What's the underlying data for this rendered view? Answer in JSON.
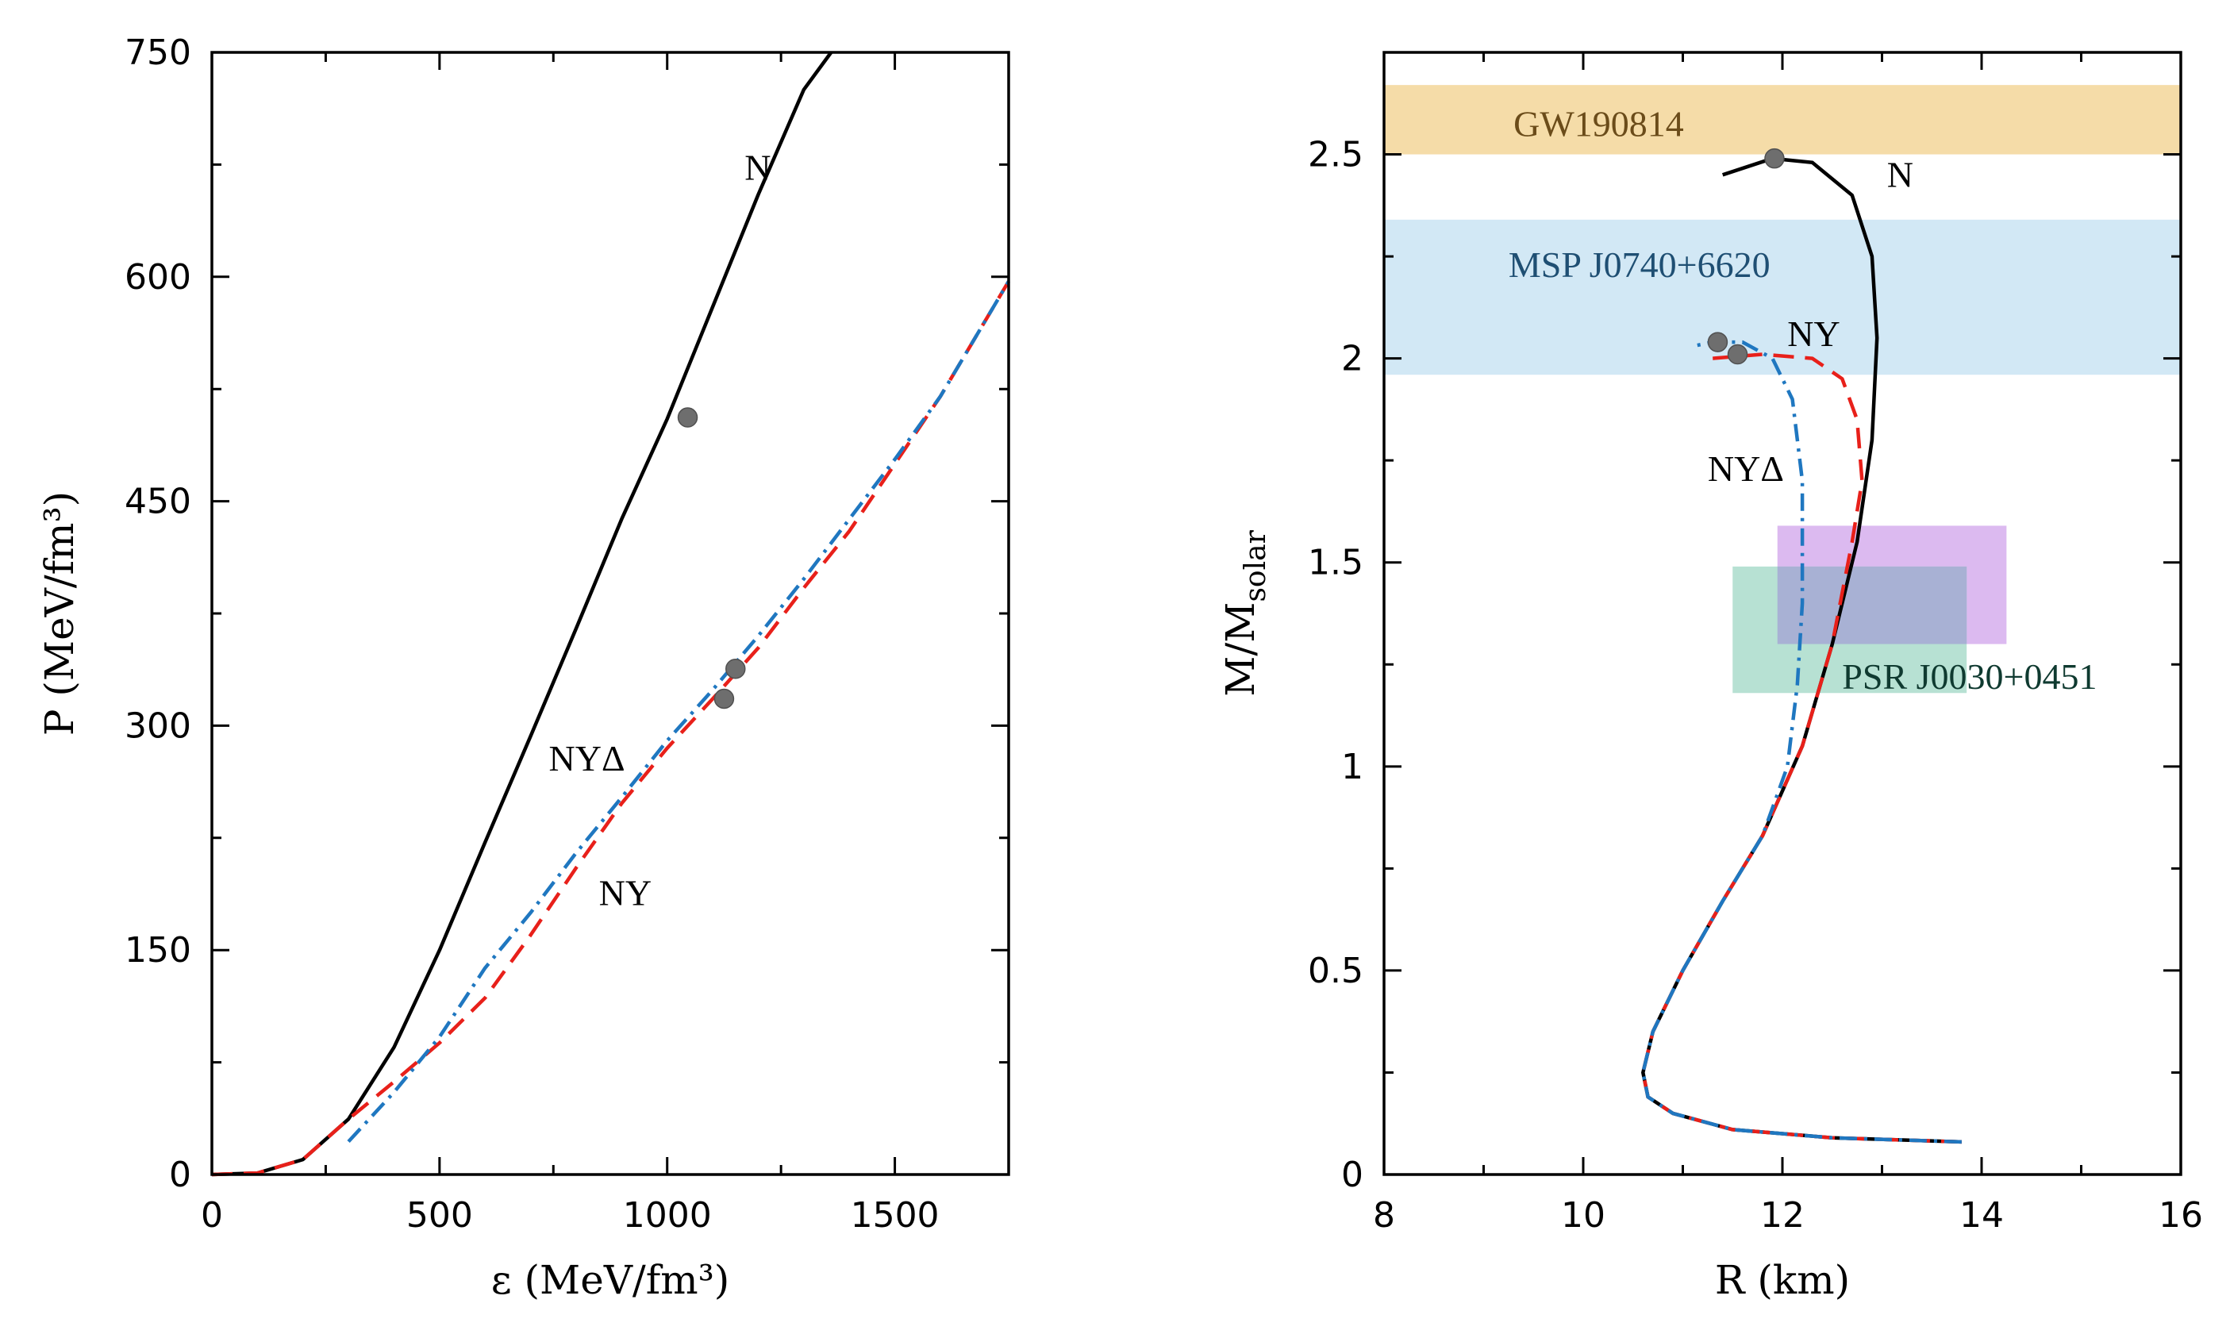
{
  "chart_data": [
    {
      "type": "line",
      "title": "",
      "xlabel": "ε (MeV/fm³)",
      "ylabel": "P (MeV/fm³)",
      "xlim": [
        0,
        1750
      ],
      "ylim": [
        0,
        750
      ],
      "xticks": [
        "0",
        "500",
        "1000",
        "1500"
      ],
      "yticks": [
        "0",
        "150",
        "300",
        "450",
        "600",
        "750"
      ],
      "series": [
        {
          "name": "N",
          "style": "solid",
          "color": "#000000",
          "x": [
            0,
            100,
            200,
            300,
            400,
            500,
            600,
            700,
            800,
            900,
            1000,
            1100,
            1200,
            1300,
            1360
          ],
          "y": [
            0,
            1,
            10,
            37,
            85,
            150,
            222,
            293,
            365,
            438,
            505,
            580,
            655,
            725,
            750
          ]
        },
        {
          "name": "NY",
          "style": "dashed",
          "color": "#e8201a",
          "x": [
            0,
            100,
            200,
            300,
            400,
            500,
            600,
            700,
            800,
            900,
            1000,
            1100,
            1200,
            1300,
            1400,
            1500,
            1600,
            1750
          ],
          "y": [
            0,
            1,
            10,
            37,
            62,
            88,
            118,
            160,
            205,
            248,
            285,
            318,
            352,
            392,
            430,
            475,
            520,
            597
          ]
        },
        {
          "name": "NYΔ",
          "style": "dashdot",
          "color": "#1f77c0",
          "x": [
            300,
            400,
            500,
            600,
            700,
            800,
            900,
            1000,
            1100,
            1200,
            1300,
            1400,
            1500,
            1600,
            1750
          ],
          "y": [
            22,
            55,
            92,
            138,
            175,
            215,
            252,
            290,
            324,
            360,
            398,
            438,
            478,
            520,
            597
          ]
        }
      ],
      "markers": [
        {
          "x": 1045,
          "y": 506
        },
        {
          "x": 1125,
          "y": 318
        },
        {
          "x": 1150,
          "y": 338
        }
      ],
      "annotations": [
        {
          "text": "N",
          "x": 1170,
          "y": 665
        },
        {
          "text": "NYΔ",
          "x": 740,
          "y": 270
        },
        {
          "text": "NY",
          "x": 850,
          "y": 180
        }
      ]
    },
    {
      "type": "line",
      "title": "",
      "xlabel": "R (km)",
      "ylabel_main": "M/M",
      "ylabel_sub": "solar",
      "xlim": [
        8,
        16
      ],
      "ylim": [
        0,
        2.75
      ],
      "xticks": [
        "8",
        "10",
        "12",
        "14",
        "16"
      ],
      "yticks": [
        "0",
        "0.5",
        "1",
        "1.5",
        "2",
        "2.5"
      ],
      "bands": [
        {
          "name": "GW190814",
          "x": [
            8,
            16
          ],
          "y": [
            2.5,
            2.67
          ],
          "color": "#f5dca8",
          "label_color": "#6b4c1a",
          "label_x": 9.3,
          "label_y": 2.545
        },
        {
          "name": "MSP J0740+6620",
          "x": [
            8,
            16
          ],
          "y": [
            1.96,
            2.34
          ],
          "color": "#d2e8f5",
          "label_color": "#1f4f73",
          "label_x": 9.25,
          "label_y": 2.2
        },
        {
          "name": "PSR_violet",
          "x": [
            11.95,
            14.25
          ],
          "y": [
            1.3,
            1.59
          ],
          "color": "#dcbaf0"
        },
        {
          "name": "PSR J0030+0451",
          "x": [
            11.5,
            13.85
          ],
          "y": [
            1.18,
            1.49
          ],
          "color": "#b7e1d3",
          "label_color": "#0f3a30",
          "label_x": 12.6,
          "label_y": 1.19
        }
      ],
      "overlap_band": {
        "x": [
          11.95,
          13.85
        ],
        "y": [
          1.3,
          1.49
        ],
        "color": "#a8b1d4"
      },
      "series": [
        {
          "name": "N",
          "style": "solid",
          "color": "#000000",
          "x": [
            13.8,
            12.5,
            11.5,
            10.9,
            10.65,
            10.6,
            10.7,
            11.0,
            11.4,
            11.8,
            12.2,
            12.5,
            12.75,
            12.9,
            12.95,
            12.9,
            12.7,
            12.3,
            11.9,
            11.4
          ],
          "y": [
            0.08,
            0.09,
            0.11,
            0.15,
            0.19,
            0.25,
            0.35,
            0.5,
            0.67,
            0.83,
            1.05,
            1.3,
            1.55,
            1.8,
            2.05,
            2.25,
            2.4,
            2.48,
            2.49,
            2.45
          ]
        },
        {
          "name": "NY",
          "style": "dashed",
          "color": "#e8201a",
          "x": [
            13.8,
            12.5,
            11.5,
            10.9,
            10.65,
            10.6,
            10.7,
            11.0,
            11.4,
            11.8,
            12.2,
            12.5,
            12.7,
            12.8,
            12.75,
            12.6,
            12.3,
            11.8,
            11.3
          ],
          "y": [
            0.08,
            0.09,
            0.11,
            0.15,
            0.19,
            0.25,
            0.35,
            0.5,
            0.67,
            0.83,
            1.05,
            1.3,
            1.55,
            1.7,
            1.85,
            1.95,
            2.0,
            2.01,
            2.0
          ]
        },
        {
          "name": "NYΔ",
          "style": "dashdot",
          "color": "#1f77c0",
          "x": [
            13.8,
            12.5,
            11.5,
            10.9,
            10.65,
            10.6,
            10.7,
            11.0,
            11.4,
            11.8,
            12.05,
            12.15,
            12.2,
            12.2,
            12.1,
            11.9,
            11.6,
            11.3,
            11.1
          ],
          "y": [
            0.08,
            0.09,
            0.11,
            0.15,
            0.19,
            0.25,
            0.35,
            0.5,
            0.67,
            0.83,
            1.0,
            1.2,
            1.4,
            1.7,
            1.9,
            2.0,
            2.04,
            2.04,
            2.03
          ]
        }
      ],
      "markers": [
        {
          "x": 11.92,
          "y": 2.49
        },
        {
          "x": 11.35,
          "y": 2.04
        },
        {
          "x": 11.55,
          "y": 2.01
        }
      ],
      "annotations": [
        {
          "text": "N",
          "x": 13.05,
          "y": 2.42
        },
        {
          "text": "NY",
          "x": 12.05,
          "y": 2.03
        },
        {
          "text": "NYΔ",
          "x": 11.25,
          "y": 1.7
        }
      ]
    }
  ]
}
